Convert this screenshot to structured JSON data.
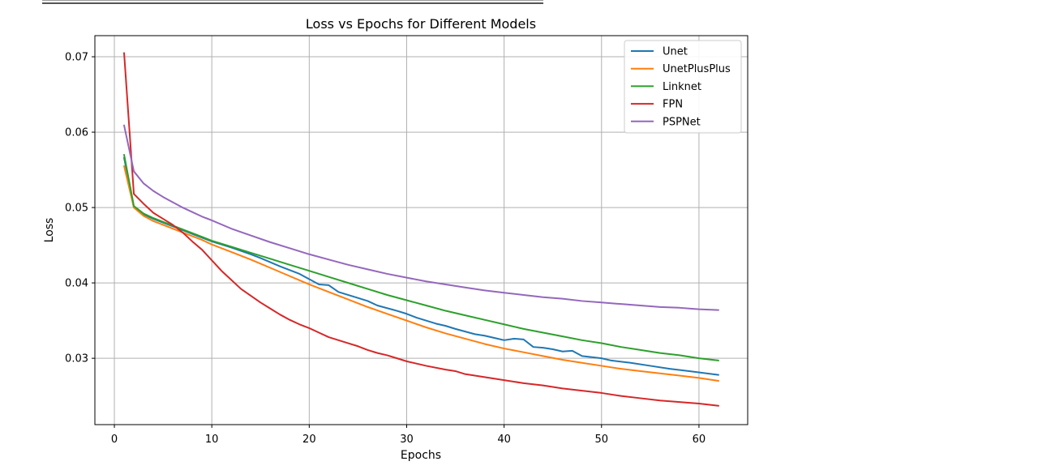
{
  "chart_data": {
    "type": "line",
    "title": "Loss vs Epochs for Different Models",
    "xlabel": "Epochs",
    "ylabel": "Loss",
    "xlim": [
      -2,
      65
    ],
    "ylim": [
      0.0212,
      0.0728
    ],
    "xticks": [
      0,
      10,
      20,
      30,
      40,
      50,
      60
    ],
    "yticks": [
      0.03,
      0.04,
      0.05,
      0.06,
      0.07
    ],
    "ytick_labels": [
      "0.03",
      "0.04",
      "0.05",
      "0.06",
      "0.07"
    ],
    "grid": true,
    "legend": "top-right",
    "series": [
      {
        "name": "Unet",
        "color": "#1f77b4",
        "points": [
          [
            1,
            0.0566
          ],
          [
            2,
            0.05
          ],
          [
            3,
            0.0491
          ],
          [
            4,
            0.0485
          ],
          [
            5,
            0.048
          ],
          [
            6,
            0.0475
          ],
          [
            7,
            0.047
          ],
          [
            8,
            0.0465
          ],
          [
            9,
            0.046
          ],
          [
            10,
            0.0455
          ],
          [
            12,
            0.0447
          ],
          [
            14,
            0.0438
          ],
          [
            15,
            0.0433
          ],
          [
            17,
            0.0422
          ],
          [
            19,
            0.0412
          ],
          [
            20,
            0.0405
          ],
          [
            21,
            0.0398
          ],
          [
            22,
            0.0397
          ],
          [
            23,
            0.0388
          ],
          [
            25,
            0.038
          ],
          [
            26,
            0.0376
          ],
          [
            27,
            0.037
          ],
          [
            29,
            0.0363
          ],
          [
            30,
            0.0359
          ],
          [
            31,
            0.0354
          ],
          [
            33,
            0.0346
          ],
          [
            34,
            0.0343
          ],
          [
            35,
            0.0339
          ],
          [
            37,
            0.0332
          ],
          [
            38,
            0.033
          ],
          [
            39,
            0.0327
          ],
          [
            40,
            0.0324
          ],
          [
            41,
            0.0326
          ],
          [
            42,
            0.0325
          ],
          [
            43,
            0.0315
          ],
          [
            44,
            0.0314
          ],
          [
            45,
            0.0312
          ],
          [
            46,
            0.0309
          ],
          [
            47,
            0.031
          ],
          [
            48,
            0.0303
          ],
          [
            50,
            0.03
          ],
          [
            51,
            0.0297
          ],
          [
            53,
            0.0294
          ],
          [
            55,
            0.029
          ],
          [
            57,
            0.0286
          ],
          [
            59,
            0.0283
          ],
          [
            62,
            0.0278
          ]
        ]
      },
      {
        "name": "UnetPlusPlus",
        "color": "#ff7f0e",
        "points": [
          [
            1,
            0.0555
          ],
          [
            2,
            0.05
          ],
          [
            3,
            0.0489
          ],
          [
            4,
            0.0482
          ],
          [
            5,
            0.0477
          ],
          [
            6,
            0.0472
          ],
          [
            7,
            0.0467
          ],
          [
            8,
            0.0462
          ],
          [
            9,
            0.0457
          ],
          [
            10,
            0.0451
          ],
          [
            12,
            0.0441
          ],
          [
            14,
            0.0431
          ],
          [
            16,
            0.042
          ],
          [
            18,
            0.0409
          ],
          [
            20,
            0.0398
          ],
          [
            22,
            0.0388
          ],
          [
            24,
            0.0378
          ],
          [
            26,
            0.0368
          ],
          [
            28,
            0.0359
          ],
          [
            30,
            0.035
          ],
          [
            32,
            0.0341
          ],
          [
            34,
            0.0333
          ],
          [
            36,
            0.0326
          ],
          [
            38,
            0.0319
          ],
          [
            40,
            0.0313
          ],
          [
            42,
            0.0308
          ],
          [
            44,
            0.0303
          ],
          [
            46,
            0.0298
          ],
          [
            48,
            0.0294
          ],
          [
            50,
            0.029
          ],
          [
            52,
            0.0286
          ],
          [
            54,
            0.0283
          ],
          [
            56,
            0.028
          ],
          [
            58,
            0.0277
          ],
          [
            60,
            0.0274
          ],
          [
            62,
            0.027
          ]
        ]
      },
      {
        "name": "Linknet",
        "color": "#2ca02c",
        "points": [
          [
            1,
            0.057
          ],
          [
            2,
            0.0502
          ],
          [
            3,
            0.0492
          ],
          [
            4,
            0.0486
          ],
          [
            5,
            0.0481
          ],
          [
            6,
            0.0476
          ],
          [
            7,
            0.0471
          ],
          [
            8,
            0.0466
          ],
          [
            9,
            0.0461
          ],
          [
            10,
            0.0456
          ],
          [
            12,
            0.0448
          ],
          [
            14,
            0.044
          ],
          [
            16,
            0.0432
          ],
          [
            18,
            0.0424
          ],
          [
            20,
            0.0416
          ],
          [
            22,
            0.0408
          ],
          [
            24,
            0.04
          ],
          [
            26,
            0.0392
          ],
          [
            28,
            0.0384
          ],
          [
            30,
            0.0377
          ],
          [
            32,
            0.037
          ],
          [
            34,
            0.0363
          ],
          [
            36,
            0.0357
          ],
          [
            38,
            0.0351
          ],
          [
            40,
            0.0345
          ],
          [
            42,
            0.0339
          ],
          [
            44,
            0.0334
          ],
          [
            46,
            0.0329
          ],
          [
            48,
            0.0324
          ],
          [
            50,
            0.032
          ],
          [
            52,
            0.0315
          ],
          [
            54,
            0.0311
          ],
          [
            56,
            0.0307
          ],
          [
            58,
            0.0304
          ],
          [
            60,
            0.03
          ],
          [
            62,
            0.0297
          ]
        ]
      },
      {
        "name": "FPN",
        "color": "#d62728",
        "points": [
          [
            1,
            0.0705
          ],
          [
            2,
            0.0518
          ],
          [
            3,
            0.0505
          ],
          [
            4,
            0.0493
          ],
          [
            5,
            0.0485
          ],
          [
            6,
            0.0477
          ],
          [
            7,
            0.0467
          ],
          [
            8,
            0.0455
          ],
          [
            9,
            0.0444
          ],
          [
            10,
            0.043
          ],
          [
            11,
            0.0416
          ],
          [
            12,
            0.0404
          ],
          [
            13,
            0.0392
          ],
          [
            14,
            0.0383
          ],
          [
            15,
            0.0374
          ],
          [
            16,
            0.0366
          ],
          [
            17,
            0.0358
          ],
          [
            18,
            0.0351
          ],
          [
            19,
            0.0345
          ],
          [
            20,
            0.034
          ],
          [
            21,
            0.0334
          ],
          [
            22,
            0.0328
          ],
          [
            23,
            0.0324
          ],
          [
            24,
            0.032
          ],
          [
            25,
            0.0316
          ],
          [
            26,
            0.0311
          ],
          [
            27,
            0.0307
          ],
          [
            28,
            0.0304
          ],
          [
            29,
            0.03
          ],
          [
            30,
            0.0296
          ],
          [
            32,
            0.029
          ],
          [
            34,
            0.0285
          ],
          [
            35,
            0.0283
          ],
          [
            36,
            0.0279
          ],
          [
            38,
            0.0275
          ],
          [
            40,
            0.0271
          ],
          [
            42,
            0.0267
          ],
          [
            44,
            0.0264
          ],
          [
            46,
            0.026
          ],
          [
            48,
            0.0257
          ],
          [
            50,
            0.0254
          ],
          [
            52,
            0.025
          ],
          [
            54,
            0.0247
          ],
          [
            56,
            0.0244
          ],
          [
            58,
            0.0242
          ],
          [
            60,
            0.024
          ],
          [
            62,
            0.0237
          ]
        ]
      },
      {
        "name": "PSPNet",
        "color": "#9467bd",
        "points": [
          [
            1,
            0.0609
          ],
          [
            2,
            0.0548
          ],
          [
            3,
            0.0532
          ],
          [
            4,
            0.0522
          ],
          [
            5,
            0.0514
          ],
          [
            6,
            0.0507
          ],
          [
            7,
            0.05
          ],
          [
            8,
            0.0494
          ],
          [
            9,
            0.0488
          ],
          [
            10,
            0.0483
          ],
          [
            12,
            0.0472
          ],
          [
            14,
            0.0463
          ],
          [
            16,
            0.0454
          ],
          [
            18,
            0.0446
          ],
          [
            20,
            0.0438
          ],
          [
            22,
            0.0431
          ],
          [
            24,
            0.0424
          ],
          [
            26,
            0.0418
          ],
          [
            28,
            0.0412
          ],
          [
            30,
            0.0407
          ],
          [
            32,
            0.0402
          ],
          [
            34,
            0.0398
          ],
          [
            36,
            0.0394
          ],
          [
            38,
            0.039
          ],
          [
            40,
            0.0387
          ],
          [
            42,
            0.0384
          ],
          [
            44,
            0.0381
          ],
          [
            46,
            0.0379
          ],
          [
            48,
            0.0376
          ],
          [
            50,
            0.0374
          ],
          [
            52,
            0.0372
          ],
          [
            54,
            0.037
          ],
          [
            56,
            0.0368
          ],
          [
            58,
            0.0367
          ],
          [
            60,
            0.0365
          ],
          [
            62,
            0.0364
          ]
        ]
      }
    ]
  }
}
